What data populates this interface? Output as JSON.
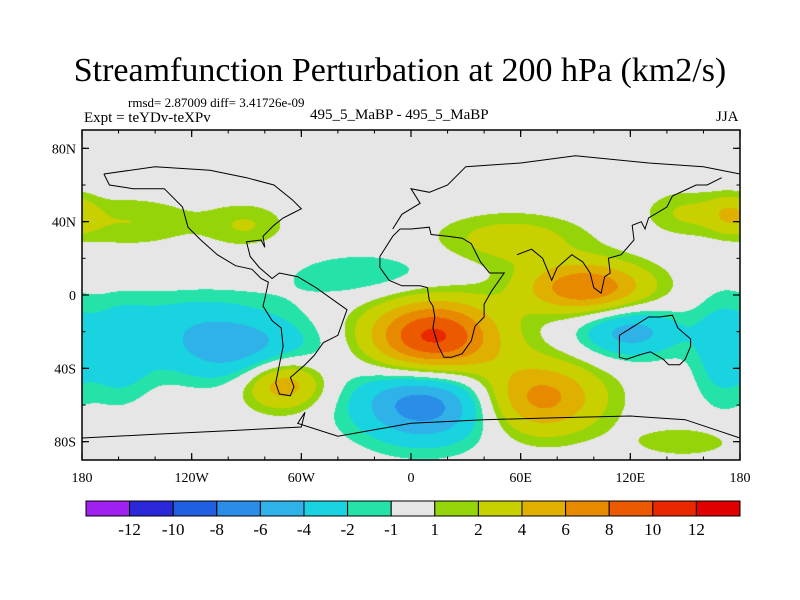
{
  "chart_data": {
    "type": "heatmap",
    "title": "Streamfunction Perturbation at 200 hPa (km2/s)",
    "stats_text": "rmsd= 2.87009  diff= 3.41726e-09",
    "left_label": "Expt = teYDv-teXPv",
    "center_label": "495_5_MaBP - 495_5_MaBP",
    "right_label": "JJA",
    "x_axis": {
      "ticks": [
        "180",
        "120W",
        "60W",
        "0",
        "60E",
        "120E",
        "180"
      ],
      "range": [
        -180,
        180
      ]
    },
    "y_axis": {
      "ticks": [
        "80N",
        "40N",
        "0",
        "40S",
        "80S"
      ],
      "range": [
        -90,
        90
      ]
    },
    "colorbar": {
      "labels": [
        "-12",
        "-10",
        "-8",
        "-6",
        "-4",
        "-2",
        "-1",
        "1",
        "2",
        "4",
        "6",
        "8",
        "10",
        "12"
      ],
      "colors": [
        "#a020f0",
        "#2a28d8",
        "#1f5fe0",
        "#2a8de8",
        "#2eb2e8",
        "#19d3e0",
        "#25e3a8",
        "#e6e6e6",
        "#96d40a",
        "#c8d000",
        "#e0b000",
        "#e88a00",
        "#ec5a00",
        "#ea2800",
        "#e00000"
      ]
    },
    "blobs": [
      {
        "lon": 12,
        "lat": -24,
        "rx": 36,
        "ry": 22,
        "v": 11
      },
      {
        "lon": 96,
        "lat": 4,
        "rx": 34,
        "ry": 14,
        "v": 8
      },
      {
        "lon": 70,
        "lat": -56,
        "rx": 34,
        "ry": 20,
        "v": 7
      },
      {
        "lon": -70,
        "lat": -48,
        "rx": 22,
        "ry": 14,
        "v": 6
      },
      {
        "lon": 8,
        "lat": -58,
        "rx": 38,
        "ry": 22,
        "v": -8
      },
      {
        "lon": -95,
        "lat": -30,
        "rx": 44,
        "ry": 18,
        "v": -5
      },
      {
        "lon": 120,
        "lat": -20,
        "rx": 28,
        "ry": 14,
        "v": -5
      },
      {
        "lon": -160,
        "lat": -32,
        "rx": 18,
        "ry": 26,
        "v": -3
      },
      {
        "lon": -120,
        "lat": -12,
        "rx": 44,
        "ry": 16,
        "v": -2
      },
      {
        "lon": -20,
        "lat": 10,
        "rx": 50,
        "ry": 14,
        "v": -2
      },
      {
        "lon": 170,
        "lat": -30,
        "rx": 16,
        "ry": 30,
        "v": -3
      },
      {
        "lon": -155,
        "lat": 40,
        "rx": 40,
        "ry": 14,
        "v": 2
      },
      {
        "lon": -90,
        "lat": 38,
        "rx": 22,
        "ry": 12,
        "v": 2
      },
      {
        "lon": 55,
        "lat": 30,
        "rx": 40,
        "ry": 14,
        "v": 3
      },
      {
        "lon": 150,
        "lat": 45,
        "rx": 22,
        "ry": 12,
        "v": 2
      },
      {
        "lon": 175,
        "lat": 44,
        "rx": 12,
        "ry": 10,
        "v": 3
      },
      {
        "lon": 150,
        "lat": -80,
        "rx": 28,
        "ry": 8,
        "v": 2
      }
    ]
  }
}
